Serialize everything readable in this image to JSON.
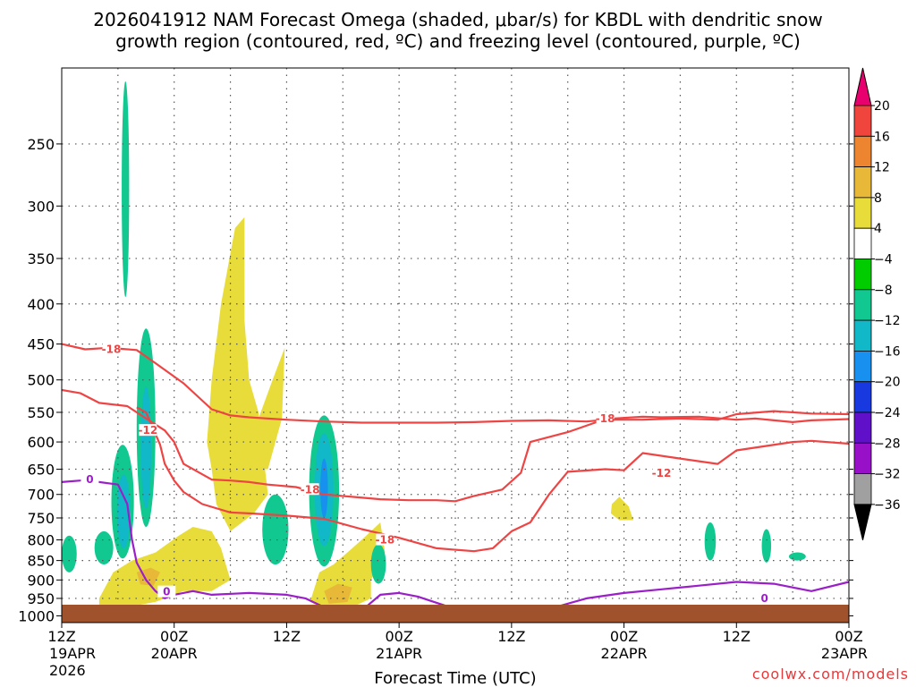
{
  "title": {
    "line1": "2026041912 NAM Forecast Omega (shaded, μbar/s) for KBDL with dendritic snow",
    "line2": "growth region (contoured, red, ºC) and freezing level (contoured, purple, ºC)"
  },
  "credit": "coolwx.com/models",
  "chart_data": {
    "type": "heatmap",
    "title": "2026041912 NAM Forecast Omega (shaded, μbar/s) for KBDL with dendritic snow growth region (contoured, red, ºC) and freezing level (contoured, purple, ºC)",
    "xlabel": "Forecast Time (UTC)",
    "ylabel": "",
    "x_range_hours": [
      0,
      84
    ],
    "y_range_mb": [
      1020,
      200
    ],
    "y_ticks": [
      "250",
      "300",
      "350",
      "400",
      "450",
      "500",
      "550",
      "600",
      "650",
      "700",
      "750",
      "800",
      "850",
      "900",
      "950",
      "1000"
    ],
    "x_ticks": [
      {
        "hour": 0,
        "lines": [
          "12Z",
          "19APR",
          "2026"
        ]
      },
      {
        "hour": 12,
        "lines": [
          "00Z",
          "20APR"
        ]
      },
      {
        "hour": 24,
        "lines": [
          "12Z"
        ]
      },
      {
        "hour": 36,
        "lines": [
          "00Z",
          "21APR"
        ]
      },
      {
        "hour": 48,
        "lines": [
          "12Z"
        ]
      },
      {
        "hour": 60,
        "lines": [
          "00Z",
          "22APR"
        ]
      },
      {
        "hour": 72,
        "lines": [
          "12Z"
        ]
      },
      {
        "hour": 84,
        "lines": [
          "00Z",
          "23APR"
        ]
      }
    ],
    "grid": true,
    "colorbar": {
      "labels": [
        "20",
        "16",
        "12",
        "8",
        "4",
        "−4",
        "−8",
        "−12",
        "−16",
        "−20",
        "−24",
        "−28",
        "−32",
        "−36"
      ],
      "colors": [
        "#e8006e",
        "#f0453c",
        "#ec8430",
        "#e8b838",
        "#e8dc3a",
        "#ffffff",
        "#00cc00",
        "#10c890",
        "#10b8c8",
        "#1890f0",
        "#1838e0",
        "#6010c8",
        "#9810c8",
        "#a0a0a0",
        "#000000"
      ]
    },
    "red_contours": [
      {
        "label": "-18",
        "points": [
          [
            0,
            450
          ],
          [
            2.5,
            457
          ],
          [
            5,
            455
          ],
          [
            8,
            458
          ],
          [
            10,
            476
          ],
          [
            13,
            505
          ],
          [
            16,
            545
          ],
          [
            18,
            555
          ],
          [
            20,
            558
          ],
          [
            24,
            562
          ],
          [
            28,
            565
          ],
          [
            32,
            567
          ],
          [
            36,
            567
          ],
          [
            40,
            567
          ],
          [
            44,
            566
          ],
          [
            48,
            564
          ],
          [
            52,
            563
          ],
          [
            56,
            565
          ],
          [
            58,
            562
          ],
          [
            62,
            562
          ],
          [
            66,
            560
          ],
          [
            70,
            562
          ],
          [
            72,
            553
          ],
          [
            76,
            548
          ],
          [
            80,
            552
          ],
          [
            84,
            553
          ]
        ]
      },
      {
        "label": "-12",
        "points": [
          [
            0,
            515
          ],
          [
            2,
            520
          ],
          [
            4,
            535
          ],
          [
            7,
            540
          ],
          [
            9,
            560
          ],
          [
            11,
            580
          ],
          [
            12,
            600
          ],
          [
            13,
            640
          ],
          [
            16,
            670
          ],
          [
            18,
            672
          ],
          [
            20,
            675
          ],
          [
            22,
            680
          ],
          [
            25,
            685
          ],
          [
            28,
            700
          ],
          [
            31,
            705
          ],
          [
            34,
            710
          ],
          [
            37,
            712
          ],
          [
            40,
            712
          ],
          [
            42,
            714
          ],
          [
            44,
            703
          ],
          [
            47,
            690
          ],
          [
            49,
            657
          ],
          [
            50,
            600
          ],
          [
            54,
            583
          ],
          [
            58,
            561
          ],
          [
            62,
            557
          ],
          [
            64,
            558
          ],
          [
            68,
            557
          ],
          [
            72,
            562
          ],
          [
            74,
            560
          ],
          [
            76,
            563
          ],
          [
            78,
            566
          ],
          [
            80,
            563
          ],
          [
            84,
            561
          ]
        ]
      },
      {
        "label": "-18",
        "points": [
          [
            8,
            542
          ],
          [
            9,
            550
          ],
          [
            10.5,
            605
          ],
          [
            11,
            640
          ],
          [
            12,
            672
          ],
          [
            13,
            695
          ],
          [
            15,
            720
          ],
          [
            18,
            738
          ],
          [
            20,
            740
          ],
          [
            24,
            745
          ],
          [
            28,
            752
          ],
          [
            32,
            775
          ],
          [
            36,
            795
          ],
          [
            40,
            820
          ],
          [
            44,
            827
          ],
          [
            46,
            820
          ],
          [
            48,
            780
          ],
          [
            50,
            760
          ],
          [
            52,
            700
          ],
          [
            54,
            655
          ],
          [
            58,
            650
          ],
          [
            60,
            652
          ],
          [
            62,
            620
          ],
          [
            66,
            630
          ],
          [
            70,
            640
          ],
          [
            72,
            615
          ],
          [
            78,
            600
          ],
          [
            80,
            598
          ],
          [
            84,
            603
          ]
        ]
      }
    ],
    "freezing_level": [
      {
        "label": "0",
        "points": [
          [
            0,
            675
          ],
          [
            2,
            672
          ],
          [
            3,
            670
          ],
          [
            4,
            675
          ],
          [
            6,
            680
          ],
          [
            7,
            720
          ],
          [
            7.5,
            800
          ],
          [
            8,
            855
          ],
          [
            9,
            900
          ],
          [
            10,
            930
          ],
          [
            11,
            950
          ],
          [
            12,
            940
          ],
          [
            14,
            930
          ],
          [
            16,
            940
          ],
          [
            20,
            935
          ],
          [
            24,
            940
          ],
          [
            26,
            950
          ],
          [
            28,
            975
          ],
          [
            29,
            1000
          ],
          [
            30,
            1000
          ],
          [
            32,
            985
          ],
          [
            34,
            940
          ],
          [
            36,
            935
          ],
          [
            38,
            945
          ],
          [
            42,
            980
          ],
          [
            44,
            1000
          ],
          [
            46,
            1000
          ],
          [
            48,
            995
          ],
          [
            52,
            980
          ],
          [
            56,
            950
          ],
          [
            60,
            935
          ],
          [
            64,
            925
          ],
          [
            68,
            915
          ],
          [
            72,
            905
          ],
          [
            76,
            910
          ],
          [
            78,
            920
          ],
          [
            80,
            930
          ],
          [
            84,
            905
          ]
        ]
      }
    ],
    "omega_regions": [
      {
        "value": -8,
        "cx": 6.8,
        "cy": 300,
        "rx": 0.4,
        "ry": 92
      },
      {
        "value": -8,
        "cx": 9.0,
        "cy": 600,
        "rx": 1.0,
        "ry": 170
      },
      {
        "value": -12,
        "cx": 9.0,
        "cy": 620,
        "rx": 0.55,
        "ry": 110
      },
      {
        "value": -8,
        "cx": 6.5,
        "cy": 725,
        "rx": 1.2,
        "ry": 120
      },
      {
        "value": -12,
        "cx": 6.6,
        "cy": 740,
        "rx": 0.7,
        "ry": 80
      },
      {
        "value": -8,
        "cx": 0.8,
        "cy": 835,
        "rx": 0.8,
        "ry": 45
      },
      {
        "value": -8,
        "cx": 4.5,
        "cy": 820,
        "rx": 1.0,
        "ry": 40
      },
      {
        "value": -8,
        "cx": 22.8,
        "cy": 780,
        "rx": 1.4,
        "ry": 80
      },
      {
        "value": -8,
        "cx": 28.0,
        "cy": 710,
        "rx": 1.6,
        "ry": 155
      },
      {
        "value": -12,
        "cx": 28.0,
        "cy": 700,
        "rx": 1.0,
        "ry": 115
      },
      {
        "value": -16,
        "cx": 28.0,
        "cy": 690,
        "rx": 0.4,
        "ry": 60
      },
      {
        "value": -8,
        "cx": 33.8,
        "cy": 860,
        "rx": 0.8,
        "ry": 50
      },
      {
        "value": -8,
        "cx": 69.2,
        "cy": 805,
        "rx": 0.6,
        "ry": 45
      },
      {
        "value": -8,
        "cx": 75.2,
        "cy": 815,
        "rx": 0.5,
        "ry": 40
      },
      {
        "value": -8,
        "cx": 78.5,
        "cy": 840,
        "rx": 0.9,
        "ry": 10
      }
    ],
    "omega_yellow": [
      {
        "value": 4,
        "points": [
          [
            15.5,
            600
          ],
          [
            16,
            500
          ],
          [
            17,
            400
          ],
          [
            18.5,
            320
          ],
          [
            19.5,
            310
          ],
          [
            19.5,
            420
          ],
          [
            20,
            500
          ],
          [
            21,
            550
          ],
          [
            22,
            700
          ],
          [
            20.5,
            740
          ],
          [
            18,
            780
          ],
          [
            16.5,
            720
          ],
          [
            16,
            650
          ]
        ]
      },
      {
        "value": 4,
        "points": [
          [
            21,
            560
          ],
          [
            22.5,
            500
          ],
          [
            23.8,
            455
          ],
          [
            23.5,
            560
          ],
          [
            22,
            650
          ],
          [
            21,
            650
          ]
        ]
      },
      {
        "value": 4,
        "points": [
          [
            4,
            950
          ],
          [
            5.5,
            880
          ],
          [
            7.5,
            850
          ],
          [
            10,
            830
          ],
          [
            12.5,
            790
          ],
          [
            14,
            770
          ],
          [
            16,
            780
          ],
          [
            17,
            820
          ],
          [
            18,
            900
          ],
          [
            16,
            930
          ],
          [
            13,
            930
          ],
          [
            10,
            960
          ],
          [
            7,
            975
          ],
          [
            4,
            975
          ]
        ]
      },
      {
        "value": 4,
        "points": [
          [
            26.5,
            960
          ],
          [
            27.5,
            880
          ],
          [
            29,
            860
          ],
          [
            31,
            820
          ],
          [
            32.5,
            790
          ],
          [
            34,
            760
          ],
          [
            34.5,
            830
          ],
          [
            33,
            900
          ],
          [
            33,
            950
          ],
          [
            31,
            975
          ],
          [
            28,
            980
          ]
        ]
      },
      {
        "value": 4,
        "points": [
          [
            58.7,
            720
          ],
          [
            59.5,
            705
          ],
          [
            60.5,
            725
          ],
          [
            61,
            755
          ],
          [
            59.5,
            755
          ],
          [
            58.6,
            740
          ]
        ]
      },
      {
        "value": 8,
        "points": [
          [
            8.0,
            880
          ],
          [
            9.5,
            868
          ],
          [
            10.5,
            880
          ],
          [
            9.8,
            915
          ],
          [
            8.4,
            912
          ]
        ]
      },
      {
        "value": 8,
        "points": [
          [
            28,
            930
          ],
          [
            29.5,
            910
          ],
          [
            31,
            920
          ],
          [
            30.5,
            960
          ],
          [
            28.5,
            965
          ]
        ]
      }
    ]
  }
}
